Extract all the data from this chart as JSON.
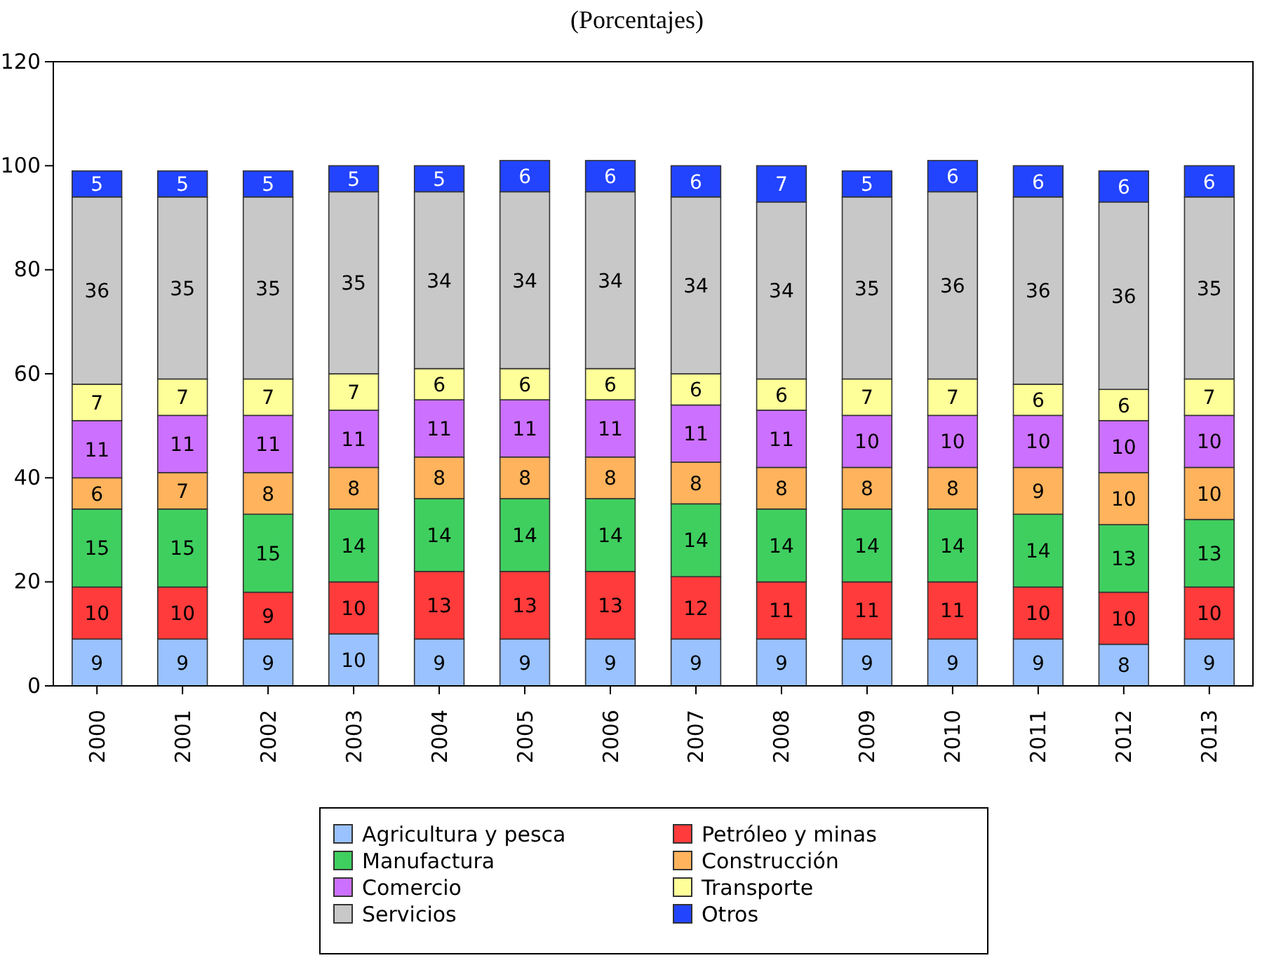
{
  "chart_data": {
    "type": "bar",
    "stacked": true,
    "title": "(Porcentajes)",
    "categories": [
      "2000",
      "2001",
      "2002",
      "2003",
      "2004",
      "2005",
      "2006",
      "2007",
      "2008",
      "2009",
      "2010",
      "2011",
      "2012",
      "2013"
    ],
    "series": [
      {
        "name": "Agricultura y pesca",
        "color": "#99c2ff",
        "values": [
          9,
          9,
          9,
          10,
          9,
          9,
          9,
          9,
          9,
          9,
          9,
          9,
          8,
          9
        ]
      },
      {
        "name": "Petróleo y minas",
        "color": "#ff3b3b",
        "values": [
          10,
          10,
          9,
          10,
          13,
          13,
          13,
          12,
          11,
          11,
          11,
          10,
          10,
          10
        ]
      },
      {
        "name": "Manufactura",
        "color": "#3fcf5f",
        "values": [
          15,
          15,
          15,
          14,
          14,
          14,
          14,
          14,
          14,
          14,
          14,
          14,
          13,
          13
        ]
      },
      {
        "name": "Construcción",
        "color": "#ffb35c",
        "values": [
          6,
          7,
          8,
          8,
          8,
          8,
          8,
          8,
          8,
          8,
          8,
          9,
          10,
          10
        ]
      },
      {
        "name": "Comercio",
        "color": "#cc70ff",
        "values": [
          11,
          11,
          11,
          11,
          11,
          11,
          11,
          11,
          11,
          10,
          10,
          10,
          10,
          10
        ]
      },
      {
        "name": "Transporte",
        "color": "#ffff99",
        "values": [
          7,
          7,
          7,
          7,
          6,
          6,
          6,
          6,
          6,
          7,
          7,
          6,
          6,
          7
        ]
      },
      {
        "name": "Servicios",
        "color": "#c8c8c8",
        "values": [
          36,
          35,
          35,
          35,
          34,
          34,
          34,
          34,
          34,
          35,
          36,
          36,
          36,
          35
        ]
      },
      {
        "name": "Otros",
        "color": "#2244ff",
        "values": [
          5,
          5,
          5,
          5,
          5,
          6,
          6,
          6,
          7,
          5,
          6,
          6,
          6,
          6
        ]
      }
    ],
    "ylim": [
      0,
      120
    ],
    "yticks": [
      0,
      20,
      40,
      60,
      80,
      100,
      120
    ],
    "data_labels": true,
    "legend": "bottom",
    "grid": false
  }
}
